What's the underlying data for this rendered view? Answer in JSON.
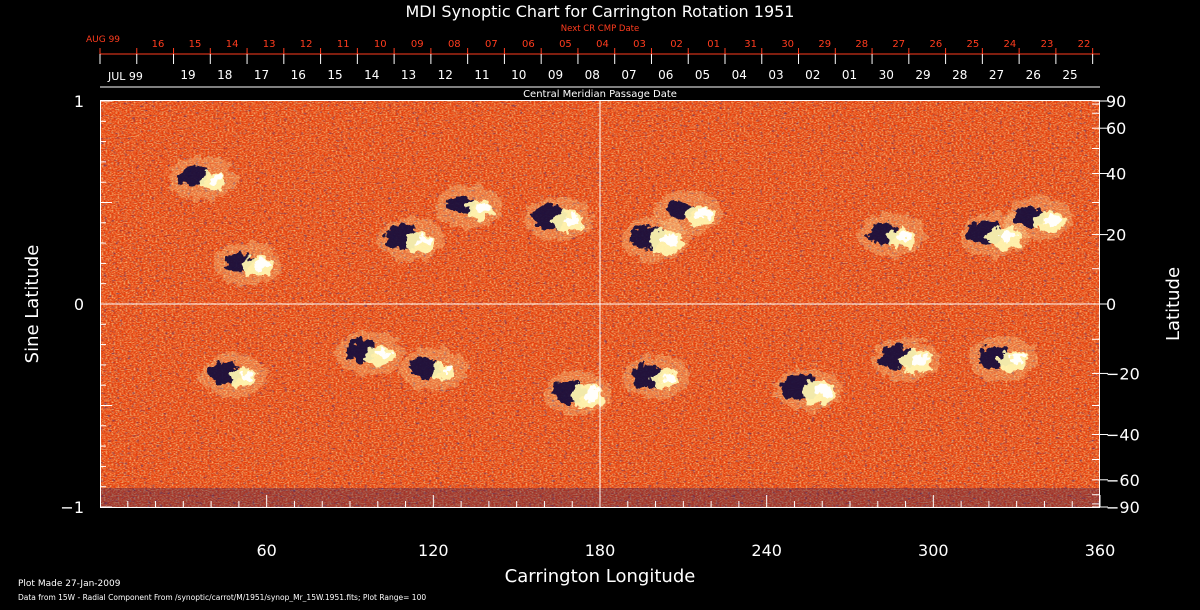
{
  "title": "MDI Synoptic Chart for Carrington Rotation 1951",
  "top_axis": {
    "label": "Next CR CMP Date",
    "month_label": "AUG 99",
    "day_labels": [
      "16",
      "15",
      "14",
      "13",
      "12",
      "11",
      "10",
      "09",
      "08",
      "07",
      "06",
      "05",
      "04",
      "03",
      "02",
      "01",
      "31",
      "30",
      "29",
      "28",
      "27",
      "26",
      "25",
      "24",
      "23",
      "22"
    ]
  },
  "mid_axis": {
    "label": "Central Meridian Passage Date",
    "month_label": "JUL 99",
    "day_labels": [
      "19",
      "18",
      "17",
      "16",
      "15",
      "14",
      "13",
      "12",
      "11",
      "10",
      "09",
      "08",
      "07",
      "06",
      "05",
      "04",
      "03",
      "02",
      "01",
      "30",
      "29",
      "28",
      "27",
      "26",
      "25"
    ]
  },
  "plot_made": "Plot Made 27-Jan-2009",
  "data_source": "Data from 15W - Radial Component From /synoptic/carrot/M/1951/synop_Mr_15W.1951.fits; Plot Range=  100",
  "colors": {
    "background": "#000000",
    "text": "#ffffff",
    "top_axis": "#ff3c1e",
    "map_base": "#e8400c",
    "positive_polarity": "#fff6b0",
    "negative_polarity": "#0e0a3a"
  },
  "chart_data": {
    "type": "heatmap",
    "title": "MDI Synoptic Chart for Carrington Rotation 1951",
    "xlabel": "Carrington Longitude",
    "ylabel_left": "Sine Latitude",
    "ylabel_right": "Latitude",
    "xlim": [
      0,
      360
    ],
    "ylim": [
      -1,
      1
    ],
    "x_ticks": [
      "60",
      "120",
      "180",
      "240",
      "300",
      "360"
    ],
    "x_tick_values": [
      60,
      120,
      180,
      240,
      300,
      360
    ],
    "y_left_ticks": [
      "1",
      "0",
      "−1"
    ],
    "y_left_tick_values": [
      1,
      0,
      -1
    ],
    "y_right_ticks": [
      "90",
      "60",
      "40",
      "20",
      "0",
      "−20",
      "−40",
      "−60",
      "−90"
    ],
    "y_right_tick_values": [
      90,
      60,
      40,
      20,
      0,
      -20,
      -40,
      -60,
      -90
    ],
    "plot_range": 100,
    "reference_lines": {
      "longitude": 180,
      "sine_latitude": 0
    },
    "active_regions": [
      {
        "lon": 37,
        "sinlat": 0.62,
        "pos": 0.5,
        "neg": 0.6
      },
      {
        "lon": 53,
        "sinlat": 0.2,
        "pos": 0.7,
        "neg": 0.5
      },
      {
        "lon": 112,
        "sinlat": 0.32,
        "pos": 0.8,
        "neg": 0.9
      },
      {
        "lon": 133,
        "sinlat": 0.48,
        "pos": 0.6,
        "neg": 0.5
      },
      {
        "lon": 165,
        "sinlat": 0.42,
        "pos": 0.8,
        "neg": 0.9
      },
      {
        "lon": 200,
        "sinlat": 0.32,
        "pos": 1.0,
        "neg": 0.9
      },
      {
        "lon": 212,
        "sinlat": 0.45,
        "pos": 0.7,
        "neg": 0.5
      },
      {
        "lon": 285,
        "sinlat": 0.34,
        "pos": 0.7,
        "neg": 0.6
      },
      {
        "lon": 322,
        "sinlat": 0.34,
        "pos": 1.0,
        "neg": 1.0
      },
      {
        "lon": 338,
        "sinlat": 0.42,
        "pos": 0.9,
        "neg": 0.7
      },
      {
        "lon": 48,
        "sinlat": -0.35,
        "pos": 0.7,
        "neg": 0.8
      },
      {
        "lon": 97,
        "sinlat": -0.24,
        "pos": 0.7,
        "neg": 0.8
      },
      {
        "lon": 120,
        "sinlat": -0.32,
        "pos": 0.4,
        "neg": 0.6
      },
      {
        "lon": 172,
        "sinlat": -0.44,
        "pos": 1.0,
        "neg": 0.8
      },
      {
        "lon": 200,
        "sinlat": -0.36,
        "pos": 0.6,
        "neg": 0.7
      },
      {
        "lon": 255,
        "sinlat": -0.42,
        "pos": 1.0,
        "neg": 1.0
      },
      {
        "lon": 290,
        "sinlat": -0.27,
        "pos": 0.9,
        "neg": 0.9
      },
      {
        "lon": 325,
        "sinlat": -0.27,
        "pos": 0.7,
        "neg": 0.8
      }
    ]
  }
}
